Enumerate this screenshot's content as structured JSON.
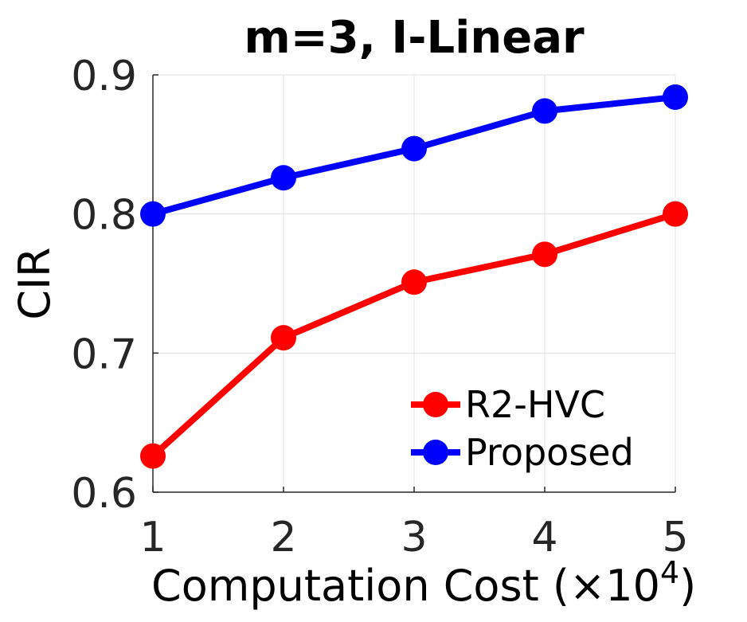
{
  "chart_data": {
    "type": "line",
    "title": "m=3, I-Linear",
    "xlabel": "Computation Cost (×10",
    "xlabel_exponent": "4",
    "xlabel_close": ")",
    "ylabel": "CIR",
    "x": [
      1,
      2,
      3,
      4,
      5
    ],
    "x_ticks": [
      "1",
      "2",
      "3",
      "4",
      "5"
    ],
    "y_ticks": [
      "0.6",
      "0.7",
      "0.8",
      "0.9"
    ],
    "y_tick_values": [
      0.6,
      0.7,
      0.8,
      0.9
    ],
    "xlim": [
      1,
      5
    ],
    "ylim": [
      0.6,
      0.9
    ],
    "grid": true,
    "legend_position": "bottom-right",
    "series": [
      {
        "name": "R2-HVC",
        "color": "#ff0000",
        "values": [
          0.626,
          0.711,
          0.751,
          0.771,
          0.8
        ]
      },
      {
        "name": "Proposed",
        "color": "#0000ff",
        "values": [
          0.8,
          0.826,
          0.847,
          0.874,
          0.884
        ]
      }
    ]
  }
}
